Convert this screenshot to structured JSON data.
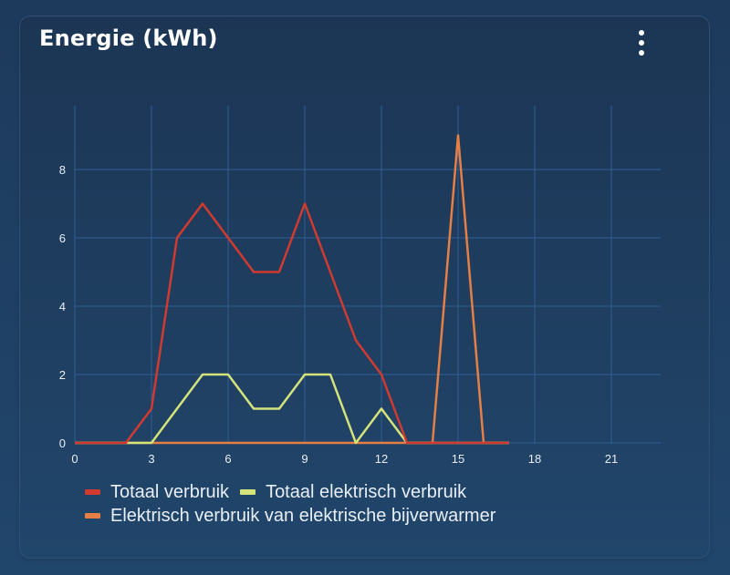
{
  "card": {
    "title": "Energie (kWh)",
    "menu_icon": "more-vertical-icon"
  },
  "colors": {
    "background": "#1e3d60",
    "card": "#1c3554",
    "grid": "#2f5f94",
    "axis_text": "#e8eef6",
    "series_totaal": "#d03a2f",
    "series_elektrisch": "#d4e37a",
    "series_bijverwarmer": "#e57f45"
  },
  "legend": [
    {
      "label": "Totaal verbruik",
      "color": "#d03a2f"
    },
    {
      "label": "Totaal elektrisch verbruik",
      "color": "#d4e37a"
    },
    {
      "label": "Elektrisch verbruik van elektrische bijverwarmer",
      "color": "#e57f45"
    }
  ],
  "chart_data": {
    "type": "line",
    "title": "Energie (kWh)",
    "xlabel": "",
    "ylabel": "",
    "x": [
      0,
      1,
      2,
      3,
      4,
      5,
      6,
      7,
      8,
      9,
      10,
      11,
      12,
      13,
      14,
      15,
      16,
      17
    ],
    "series": [
      {
        "name": "Totaal verbruik",
        "color": "#d03a2f",
        "values": [
          0,
          0,
          0,
          1,
          6,
          7,
          6,
          5,
          5,
          7,
          5,
          3,
          2,
          0,
          0,
          0,
          0,
          0
        ]
      },
      {
        "name": "Totaal elektrisch verbruik",
        "color": "#d4e37a",
        "values": [
          0,
          0,
          0,
          0,
          1,
          2,
          2,
          1,
          1,
          2,
          2,
          0,
          1,
          0,
          0,
          0,
          0,
          0
        ]
      },
      {
        "name": "Elektrisch verbruik van elektrische bijverwarmer",
        "color": "#e57f45",
        "values": [
          0,
          0,
          0,
          0,
          0,
          0,
          0,
          0,
          0,
          0,
          0,
          0,
          0,
          0,
          0,
          9,
          0,
          0
        ]
      }
    ],
    "xticks": [
      0,
      3,
      6,
      9,
      12,
      15,
      18,
      21
    ],
    "yticks": [
      0,
      2,
      4,
      6,
      8
    ],
    "xlim": [
      0,
      23
    ],
    "ylim": [
      0,
      9.9
    ],
    "grid": true,
    "legend_position": "bottom-left"
  }
}
